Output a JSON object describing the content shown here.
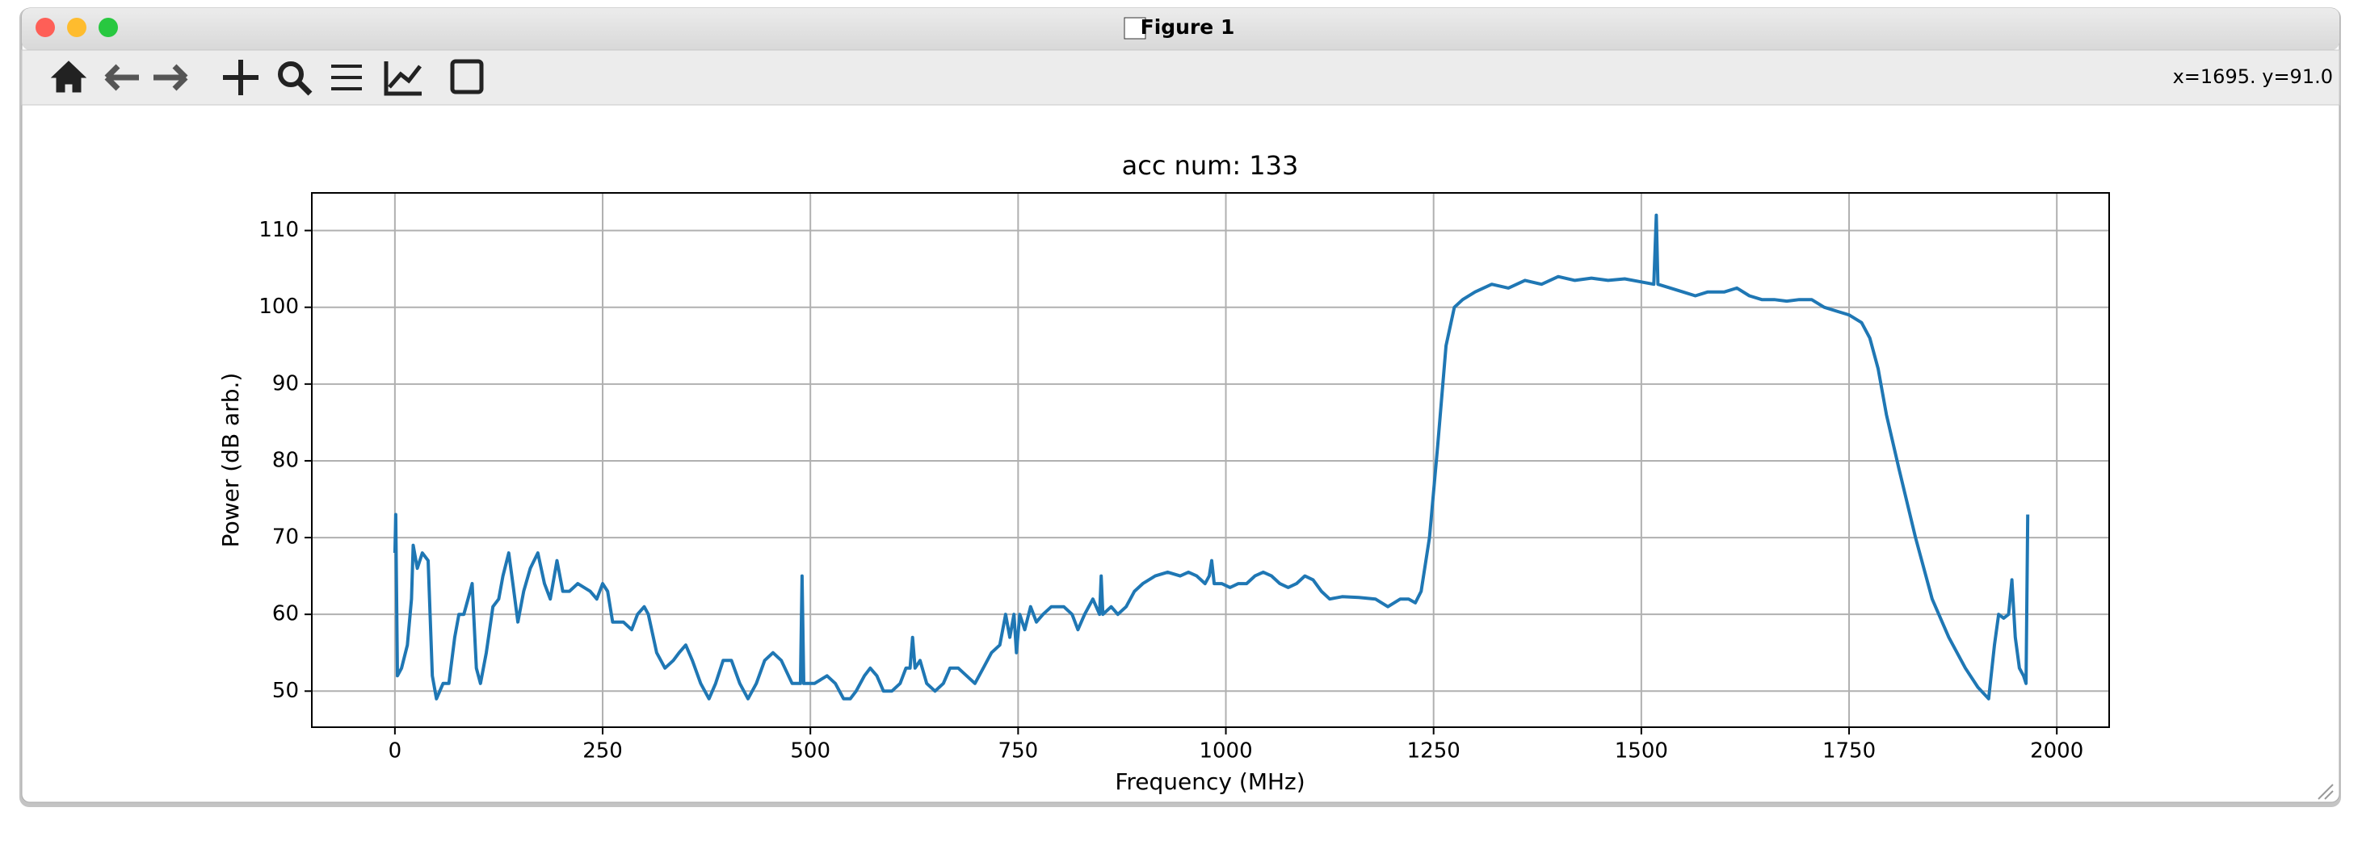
{
  "window": {
    "title": "Figure 1",
    "status": "x=1695. y=91.0"
  },
  "chart_data": {
    "type": "line",
    "title": "acc num: 133",
    "x_label": "Frequency (MHz)",
    "y_label": "Power (dB arb.)",
    "x": [
      0,
      1,
      3,
      8,
      15,
      20,
      22,
      27,
      33,
      40,
      45,
      50,
      58,
      65,
      72,
      77,
      83,
      88,
      93,
      98,
      103,
      110,
      118,
      125,
      130,
      137,
      142,
      148,
      155,
      163,
      172,
      180,
      187,
      195,
      202,
      210,
      220,
      235,
      243,
      250,
      256,
      262,
      275,
      285,
      292,
      300,
      305,
      315,
      325,
      335,
      342,
      350,
      358,
      368,
      378,
      386,
      395,
      405,
      415,
      425,
      435,
      445,
      455,
      465,
      478,
      488,
      490,
      492,
      505,
      520,
      530,
      540,
      548,
      555,
      565,
      572,
      580,
      588,
      598,
      608,
      615,
      620,
      623,
      626,
      632,
      640,
      650,
      660,
      668,
      678,
      688,
      698,
      708,
      718,
      728,
      735,
      740,
      745,
      748,
      752,
      758,
      765,
      772,
      780,
      790,
      805,
      815,
      822,
      830,
      840,
      848,
      850,
      852,
      862,
      870,
      880,
      890,
      900,
      915,
      930,
      945,
      955,
      965,
      975,
      980,
      983,
      986,
      995,
      1005,
      1015,
      1025,
      1035,
      1045,
      1055,
      1065,
      1075,
      1085,
      1095,
      1105,
      1115,
      1125,
      1140,
      1160,
      1180,
      1195,
      1210,
      1220,
      1228,
      1235,
      1245,
      1255,
      1265,
      1275,
      1285,
      1300,
      1320,
      1340,
      1360,
      1380,
      1400,
      1420,
      1440,
      1460,
      1480,
      1500,
      1515,
      1518,
      1520,
      1535,
      1550,
      1565,
      1580,
      1600,
      1615,
      1630,
      1645,
      1660,
      1675,
      1690,
      1705,
      1720,
      1735,
      1750,
      1765,
      1775,
      1785,
      1795,
      1810,
      1830,
      1850,
      1870,
      1890,
      1905,
      1918,
      1925,
      1930,
      1936,
      1942,
      1946,
      1950,
      1955,
      1960,
      1963,
      1965
    ],
    "series": [
      {
        "color": "#1f77b4",
        "values": [
          68,
          73,
          52,
          53,
          56,
          62,
          69,
          66,
          68,
          67,
          52,
          49,
          51,
          51,
          57,
          60,
          60,
          62,
          64,
          53,
          51,
          55,
          61,
          62,
          65,
          68,
          64,
          59,
          63,
          66,
          68,
          64,
          62,
          67,
          63,
          63,
          64,
          63,
          62,
          64,
          63,
          59,
          59,
          58,
          60,
          61,
          60,
          55,
          53,
          54,
          55,
          56,
          54,
          51,
          49,
          51,
          54,
          54,
          51,
          49,
          51,
          54,
          55,
          54,
          51,
          51,
          65,
          51,
          51,
          52,
          51,
          49,
          49,
          50,
          52,
          53,
          52,
          50,
          50,
          51,
          53,
          53,
          57,
          53,
          54,
          51,
          50,
          51,
          53,
          53,
          52,
          51,
          53,
          55,
          56,
          60,
          57,
          60,
          55,
          60,
          58,
          61,
          59,
          60,
          61,
          61,
          60,
          58,
          60,
          62,
          60,
          65,
          60,
          61,
          60,
          61,
          63,
          64,
          65,
          65.5,
          65,
          65.5,
          65,
          64,
          65,
          67,
          64,
          64,
          63.5,
          64,
          64,
          65,
          65.5,
          65,
          64,
          63.5,
          64,
          65,
          64.5,
          63,
          62,
          62.3,
          62.2,
          62,
          61,
          62,
          62,
          61.5,
          63,
          70,
          82,
          95,
          100,
          101,
          102,
          103,
          102.5,
          103.5,
          103,
          104,
          103.5,
          103.8,
          103.5,
          103.7,
          103.3,
          103,
          112,
          103,
          102.5,
          102,
          101.5,
          102,
          102,
          102.5,
          101.5,
          101,
          101,
          100.8,
          101,
          101,
          100,
          99.5,
          99,
          98,
          96,
          92,
          86,
          79,
          70,
          62,
          57,
          53,
          50.5,
          49,
          56,
          60,
          59.5,
          60,
          64.5,
          57,
          53,
          52,
          51,
          73
        ]
      }
    ],
    "xlim": [
      -100,
      2063
    ],
    "ylim": [
      45.3,
      114.9
    ],
    "xticks": [
      0,
      250,
      500,
      750,
      1000,
      1250,
      1500,
      1750,
      2000
    ],
    "yticks": [
      50,
      60,
      70,
      80,
      90,
      100,
      110
    ],
    "grid": true
  }
}
